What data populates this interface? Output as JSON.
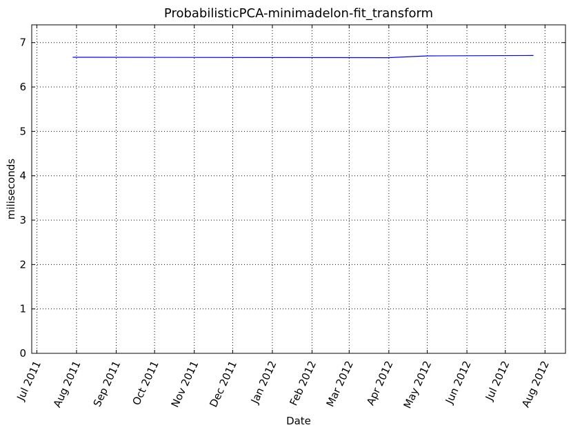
{
  "chart_data": {
    "type": "line",
    "title": "ProbabilisticPCA-minimadelon-fit_transform",
    "xlabel": "Date",
    "ylabel": "miliseconds",
    "xlim": [
      "2011-06-27",
      "2012-08-17"
    ],
    "ylim": [
      0,
      7.4
    ],
    "grid": true,
    "x_ticks": [
      "2011-07-01",
      "2011-08-01",
      "2011-09-01",
      "2011-10-01",
      "2011-11-01",
      "2011-12-01",
      "2012-01-01",
      "2012-02-01",
      "2012-03-01",
      "2012-04-01",
      "2012-05-01",
      "2012-06-01",
      "2012-07-01",
      "2012-08-01"
    ],
    "x_tick_labels": [
      "Jul 2011",
      "Aug 2011",
      "Sep 2011",
      "Oct 2011",
      "Nov 2011",
      "Dec 2011",
      "Jan 2012",
      "Feb 2012",
      "Mar 2012",
      "Apr 2012",
      "May 2012",
      "Jun 2012",
      "Jul 2012",
      "Aug 2012"
    ],
    "y_ticks": [
      0,
      1,
      2,
      3,
      4,
      5,
      6,
      7
    ],
    "y_tick_labels": [
      "0",
      "1",
      "2",
      "3",
      "4",
      "5",
      "6",
      "7"
    ],
    "series": [
      {
        "color": "#0000ff",
        "x": [
          "2011-07-29",
          "2012-03-31",
          "2012-05-01",
          "2012-07-23"
        ],
        "y": [
          6.67,
          6.66,
          6.7,
          6.71
        ]
      }
    ]
  }
}
